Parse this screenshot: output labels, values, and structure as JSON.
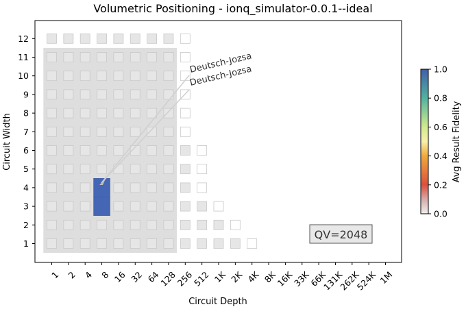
{
  "chart_data": {
    "type": "heatmap",
    "title": "Volumetric Positioning - ionq_simulator-0.0.1--ideal",
    "xlabel": "Circuit Depth",
    "ylabel": "Circuit Width",
    "x_ticks": [
      "1",
      "2",
      "4",
      "8",
      "16",
      "32",
      "64",
      "128",
      "256",
      "512",
      "1K",
      "2K",
      "4K",
      "8K",
      "16K",
      "33K",
      "66K",
      "131K",
      "262K",
      "524K",
      "1M"
    ],
    "y_ticks": [
      "1",
      "2",
      "3",
      "4",
      "5",
      "6",
      "7",
      "8",
      "9",
      "10",
      "11",
      "12"
    ],
    "colorbar": {
      "label": "Avg Result Fidelity",
      "range": [
        0.0,
        1.0
      ],
      "ticks": [
        "0.0",
        "0.2",
        "0.4",
        "0.6",
        "0.8",
        "1.0"
      ]
    },
    "qv_label": "QV=2048",
    "quantum_volume_region": {
      "max_depth": "128",
      "max_width": "11"
    },
    "background_cells": [
      {
        "width": 12,
        "max_depth": "256"
      },
      {
        "width": 11,
        "max_depth": "256"
      },
      {
        "width": 10,
        "max_depth": "256"
      },
      {
        "width": 9,
        "max_depth": "256"
      },
      {
        "width": 8,
        "max_depth": "256"
      },
      {
        "width": 7,
        "max_depth": "256"
      },
      {
        "width": 6,
        "max_depth": "512"
      },
      {
        "width": 5,
        "max_depth": "512"
      },
      {
        "width": 4,
        "max_depth": "512"
      },
      {
        "width": 3,
        "max_depth": "1K"
      },
      {
        "width": 2,
        "max_depth": "2K"
      },
      {
        "width": 1,
        "max_depth": "4K"
      }
    ],
    "benchmarks": [
      {
        "name": "Deutsch-Jozsa",
        "depth": "8",
        "width": 3,
        "fidelity": 1.0
      },
      {
        "name": "Deutsch-Jozsa",
        "depth": "8",
        "width": 4,
        "fidelity": 1.0
      }
    ],
    "annotations": [
      "Deutsch-Jozsa",
      "Deutsch-Jozsa"
    ]
  }
}
